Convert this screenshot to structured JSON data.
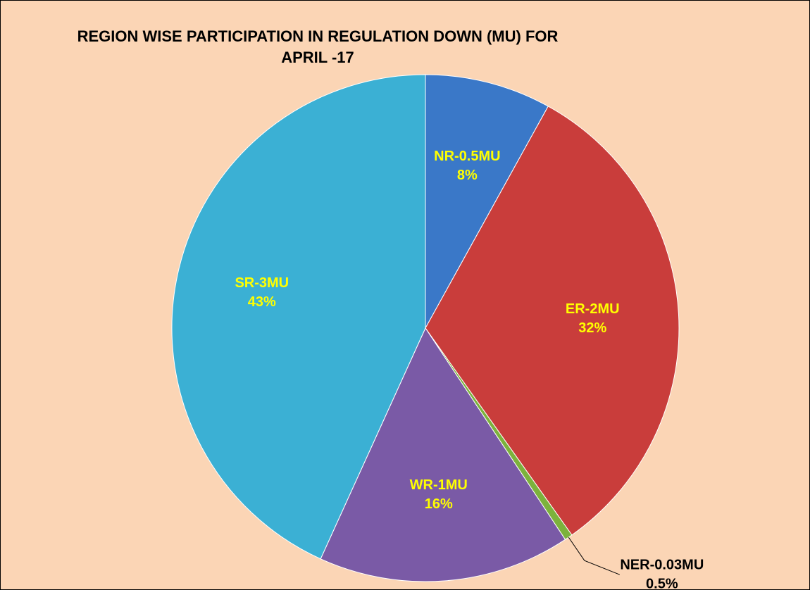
{
  "chart_data": {
    "type": "pie",
    "title": "REGION WISE PARTICIPATION IN REGULATION DOWN (MU) FOR APRIL -17",
    "categories": [
      "NR-0.5MU",
      "ER-2MU",
      "NER-0.03MU",
      "WR-1MU",
      "SR-3MU"
    ],
    "values": [
      8,
      32,
      0.5,
      16,
      43
    ],
    "value_labels": [
      "8%",
      "32%",
      "0.5%",
      "16%",
      "43%"
    ],
    "colors": [
      "#3a78c8",
      "#c93d3b",
      "#7cb23c",
      "#7a5aa6",
      "#3bb0d4"
    ]
  }
}
